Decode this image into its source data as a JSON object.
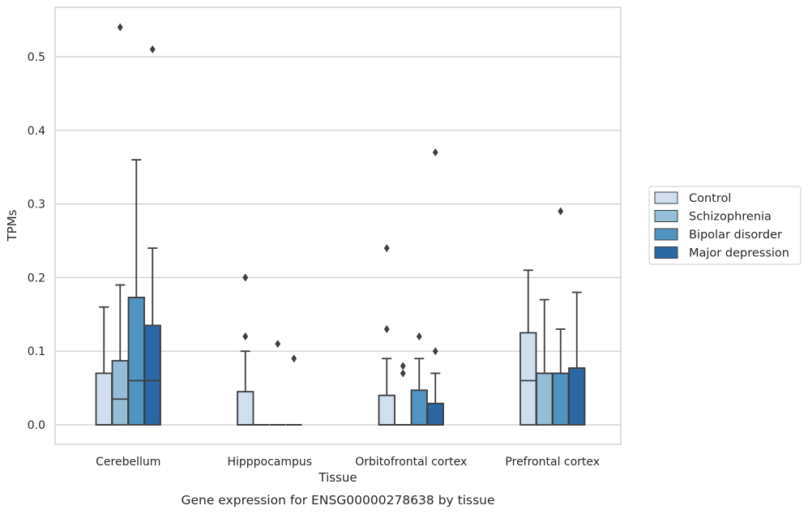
{
  "chart_data": {
    "type": "box",
    "caption": "Gene expression for ENSG00000278638 by tissue",
    "xlabel": "Tissue",
    "ylabel": "TPMs",
    "ylim": [
      -0.027,
      0.57
    ],
    "yticks": [
      0.0,
      0.1,
      0.2,
      0.3,
      0.4,
      0.5
    ],
    "ytick_labels": [
      "0.0",
      "0.1",
      "0.2",
      "0.3",
      "0.4",
      "0.5"
    ],
    "grid": "horizontal",
    "legend_position": "right-center",
    "categories": [
      "Cerebellum",
      "Hipppocampus",
      "Orbitofrontal cortex",
      "Prefrontal cortex"
    ],
    "series": [
      {
        "name": "Control",
        "color": "#d0dfed",
        "boxes": [
          {
            "q1": 0.0,
            "median": 0.0,
            "q3": 0.07,
            "whislo": 0.0,
            "whishi": 0.16,
            "fliers": []
          },
          {
            "q1": 0.0,
            "median": 0.0,
            "q3": 0.045,
            "whislo": 0.0,
            "whishi": 0.1,
            "fliers": [
              0.12,
              0.2
            ]
          },
          {
            "q1": 0.0,
            "median": 0.0,
            "q3": 0.04,
            "whislo": 0.0,
            "whishi": 0.09,
            "fliers": [
              0.13,
              0.24
            ]
          },
          {
            "q1": 0.0,
            "median": 0.06,
            "q3": 0.125,
            "whislo": 0.0,
            "whishi": 0.21,
            "fliers": []
          }
        ]
      },
      {
        "name": "Schizophrenia",
        "color": "#94bed8",
        "boxes": [
          {
            "q1": 0.0,
            "median": 0.035,
            "q3": 0.087,
            "whislo": 0.0,
            "whishi": 0.19,
            "fliers": [
              0.54
            ]
          },
          {
            "q1": 0.0,
            "median": 0.0,
            "q3": 0.0,
            "whislo": 0.0,
            "whishi": 0.0,
            "fliers": []
          },
          {
            "q1": 0.0,
            "median": 0.0,
            "q3": 0.0,
            "whislo": 0.0,
            "whishi": 0.0,
            "fliers": [
              0.07,
              0.08
            ]
          },
          {
            "q1": 0.0,
            "median": 0.07,
            "q3": 0.07,
            "whislo": 0.0,
            "whishi": 0.17,
            "fliers": []
          }
        ]
      },
      {
        "name": "Bipolar disorder",
        "color": "#5193c1",
        "boxes": [
          {
            "q1": 0.0,
            "median": 0.06,
            "q3": 0.173,
            "whislo": 0.0,
            "whishi": 0.36,
            "fliers": []
          },
          {
            "q1": 0.0,
            "median": 0.0,
            "q3": 0.0,
            "whislo": 0.0,
            "whishi": 0.0,
            "fliers": [
              0.11
            ]
          },
          {
            "q1": 0.0,
            "median": 0.0,
            "q3": 0.047,
            "whislo": 0.0,
            "whishi": 0.09,
            "fliers": [
              0.12
            ]
          },
          {
            "q1": 0.0,
            "median": 0.07,
            "q3": 0.07,
            "whislo": 0.0,
            "whishi": 0.13,
            "fliers": [
              0.29
            ]
          }
        ]
      },
      {
        "name": "Major depression",
        "color": "#2a67a4",
        "boxes": [
          {
            "q1": 0.0,
            "median": 0.06,
            "q3": 0.135,
            "whislo": 0.0,
            "whishi": 0.24,
            "fliers": [
              0.51
            ]
          },
          {
            "q1": 0.0,
            "median": 0.0,
            "q3": 0.0,
            "whislo": 0.0,
            "whishi": 0.0,
            "fliers": [
              0.09
            ]
          },
          {
            "q1": 0.0,
            "median": 0.0,
            "q3": 0.029,
            "whislo": 0.0,
            "whishi": 0.07,
            "fliers": [
              0.1,
              0.37
            ]
          },
          {
            "q1": 0.0,
            "median": 0.077,
            "q3": 0.077,
            "whislo": 0.0,
            "whishi": 0.18,
            "fliers": []
          }
        ]
      }
    ]
  }
}
